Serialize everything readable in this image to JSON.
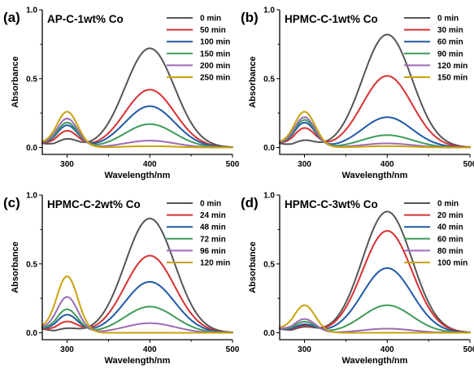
{
  "chart_data": [
    {
      "type": "line",
      "panel_letter": "(a)",
      "title": "AP-C-1wt% Co",
      "xlabel": "Wavelength/nm",
      "ylabel": "Absorbance",
      "xlim": [
        270,
        500
      ],
      "ylim": [
        -0.05,
        1.0
      ],
      "x_ticks": [
        300,
        400,
        500
      ],
      "y_ticks": [
        0.0,
        0.5,
        1.0
      ],
      "legend_position": "top-right",
      "series": [
        {
          "name": "0 min",
          "color": "#555555",
          "p300": 0.06,
          "p400": 0.72
        },
        {
          "name": "50 min",
          "color": "#d93030",
          "p300": 0.12,
          "p400": 0.42
        },
        {
          "name": "100 min",
          "color": "#1f5aa6",
          "p300": 0.16,
          "p400": 0.3
        },
        {
          "name": "150 min",
          "color": "#3f9a5a",
          "p300": 0.18,
          "p400": 0.17
        },
        {
          "name": "200 min",
          "color": "#9b6bb5",
          "p300": 0.21,
          "p400": 0.05
        },
        {
          "name": "250 min",
          "color": "#c9a20c",
          "p300": 0.26,
          "p400": 0.01
        }
      ]
    },
    {
      "type": "line",
      "panel_letter": "(b)",
      "title": "HPMC-C-1wt% Co",
      "xlabel": "Wavelength/nm",
      "ylabel": "Absorbance",
      "xlim": [
        270,
        500
      ],
      "ylim": [
        -0.05,
        1.0
      ],
      "x_ticks": [
        300,
        400,
        500
      ],
      "y_ticks": [
        0.0,
        0.5,
        1.0
      ],
      "legend_position": "top-right",
      "series": [
        {
          "name": "0 min",
          "color": "#555555",
          "p300": 0.05,
          "p400": 0.82
        },
        {
          "name": "30 min",
          "color": "#d93030",
          "p300": 0.14,
          "p400": 0.52
        },
        {
          "name": "60 min",
          "color": "#1f5aa6",
          "p300": 0.18,
          "p400": 0.22
        },
        {
          "name": "90 min",
          "color": "#3f9a5a",
          "p300": 0.2,
          "p400": 0.09
        },
        {
          "name": "120 min",
          "color": "#9b6bb5",
          "p300": 0.22,
          "p400": 0.03
        },
        {
          "name": "150 min",
          "color": "#c9a20c",
          "p300": 0.26,
          "p400": 0.01
        }
      ]
    },
    {
      "type": "line",
      "panel_letter": "(c)",
      "title": "HPMC-C-2wt% Co",
      "xlabel": "Wavelength/nm",
      "ylabel": "Absorbance",
      "xlim": [
        270,
        500
      ],
      "ylim": [
        -0.05,
        1.0
      ],
      "x_ticks": [
        300,
        400,
        500
      ],
      "y_ticks": [
        0.0,
        0.5,
        1.0
      ],
      "legend_position": "top-right",
      "series": [
        {
          "name": "0 min",
          "color": "#555555",
          "p300": 0.03,
          "p400": 0.83
        },
        {
          "name": "24 min",
          "color": "#d93030",
          "p300": 0.08,
          "p400": 0.56
        },
        {
          "name": "48 min",
          "color": "#1f5aa6",
          "p300": 0.13,
          "p400": 0.37
        },
        {
          "name": "72 min",
          "color": "#3f9a5a",
          "p300": 0.17,
          "p400": 0.19
        },
        {
          "name": "96 min",
          "color": "#9b6bb5",
          "p300": 0.26,
          "p400": 0.07
        },
        {
          "name": "120 min",
          "color": "#c9a20c",
          "p300": 0.41,
          "p400": 0.0
        }
      ]
    },
    {
      "type": "line",
      "panel_letter": "(d)",
      "title": "HPMC-C-3wt% Co",
      "xlabel": "Wavelength/nm",
      "ylabel": "Absorbance",
      "xlim": [
        270,
        500
      ],
      "ylim": [
        -0.05,
        1.0
      ],
      "x_ticks": [
        300,
        400,
        500
      ],
      "y_ticks": [
        0.0,
        0.5,
        1.0
      ],
      "legend_position": "top-right",
      "series": [
        {
          "name": "0 min",
          "color": "#555555",
          "p300": 0.04,
          "p400": 0.88
        },
        {
          "name": "20 min",
          "color": "#d93030",
          "p300": 0.05,
          "p400": 0.74
        },
        {
          "name": "40 min",
          "color": "#1f5aa6",
          "p300": 0.06,
          "p400": 0.47
        },
        {
          "name": "60 min",
          "color": "#3f9a5a",
          "p300": 0.08,
          "p400": 0.2
        },
        {
          "name": "80 min",
          "color": "#9b6bb5",
          "p300": 0.1,
          "p400": 0.03
        },
        {
          "name": "100 min",
          "color": "#c9a20c",
          "p300": 0.2,
          "p400": 0.0
        }
      ]
    }
  ]
}
